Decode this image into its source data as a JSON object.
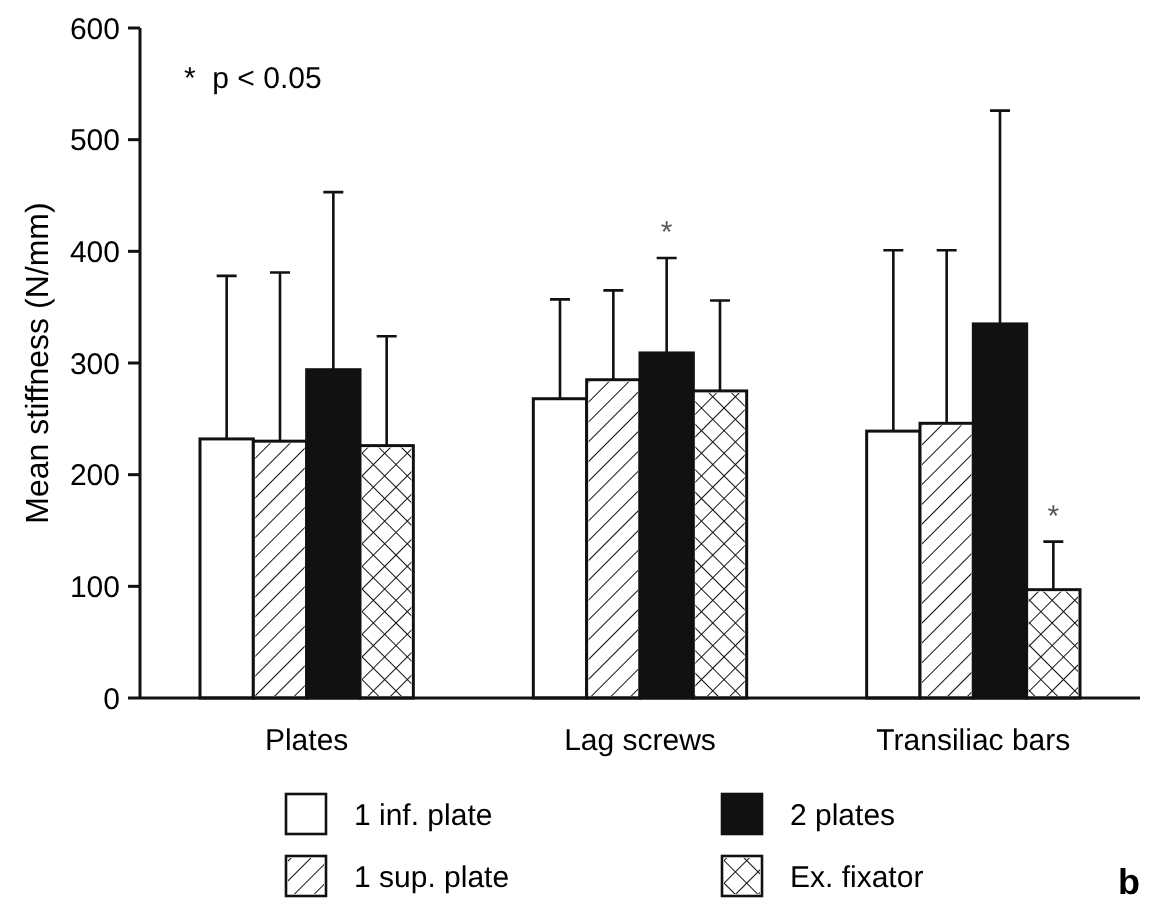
{
  "chart_data": {
    "type": "bar",
    "ylabel": "Mean stiffness (N/mm)",
    "categories": [
      "Plates",
      "Lag screws",
      "Transiliac bars"
    ],
    "series": [
      {
        "name": "1 inf. plate",
        "color": "#ffffff",
        "values": [
          232,
          268,
          239
        ],
        "errors": [
          [
            232,
            378
          ],
          [
            268,
            357
          ],
          [
            239,
            401
          ]
        ]
      },
      {
        "name": "1 sup. plate",
        "color": "#ffffff",
        "values": [
          230,
          285,
          246
        ],
        "errors": [
          [
            230,
            381
          ],
          [
            285,
            365
          ],
          [
            246,
            401
          ]
        ]
      },
      {
        "name": "2 plates",
        "color": "#111111",
        "values": [
          294,
          309,
          335
        ],
        "errors": [
          [
            294,
            453
          ],
          [
            309,
            394
          ],
          [
            335,
            526
          ]
        ]
      },
      {
        "name": "Ex. fixator",
        "color": "#ffffff",
        "values": [
          226,
          275,
          97
        ],
        "errors": [
          [
            226,
            324
          ],
          [
            275,
            356
          ],
          [
            97,
            140
          ]
        ]
      }
    ],
    "ylim": [
      0,
      600
    ],
    "yticks": [
      0,
      100,
      200,
      300,
      400,
      500,
      600
    ],
    "legend": "bottom",
    "annotations": [
      "*  p < 0.05",
      "*",
      "*",
      "b"
    ]
  }
}
